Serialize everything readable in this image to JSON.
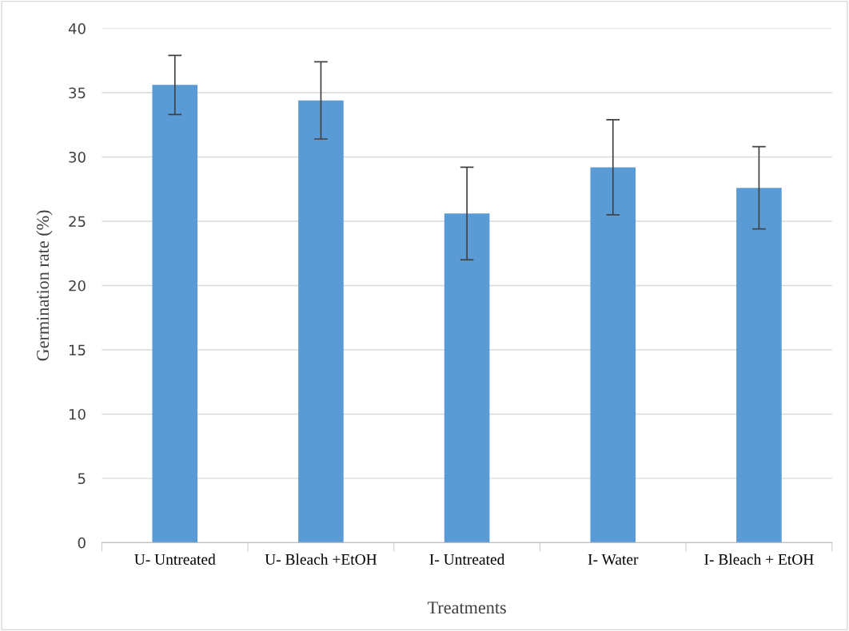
{
  "chart_data": {
    "type": "bar",
    "xlabel": "Treatments",
    "ylabel": "Germination rate (%)",
    "categories": [
      "U- Untreated",
      "U- Bleach +EtOH",
      "I- Untreated",
      "I- Water",
      "I- Bleach + EtOH"
    ],
    "values": [
      35.6,
      34.4,
      25.6,
      29.2,
      27.6
    ],
    "errors": [
      2.3,
      3.0,
      3.6,
      3.7,
      3.2
    ],
    "color": "#5b9bd5",
    "ylim": [
      0,
      40
    ],
    "yticks": [
      0,
      5,
      10,
      15,
      20,
      25,
      30,
      35,
      40
    ],
    "grid": "y"
  }
}
